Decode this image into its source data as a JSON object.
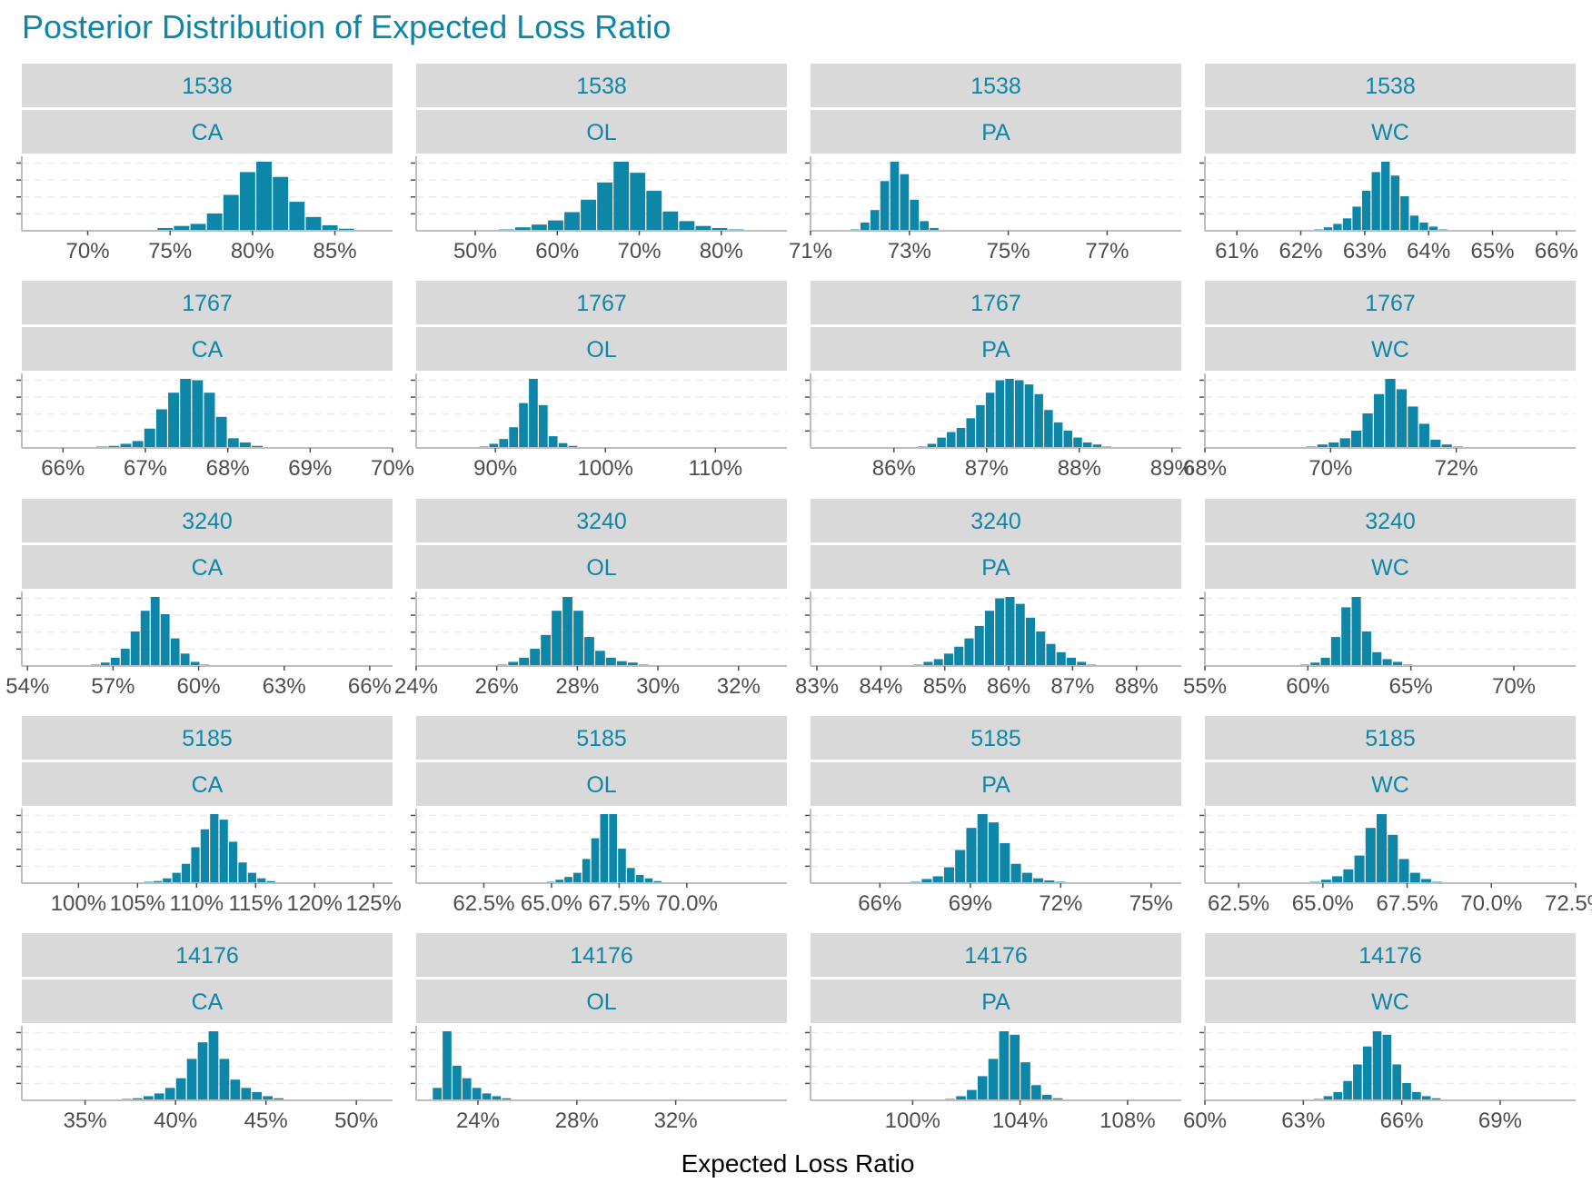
{
  "colors": {
    "bar": "#0E86A8",
    "accent_text": "#0E86A8",
    "strip_bg": "#D9D9D9",
    "grid": "#EBEBEB",
    "axis": "#BEBEBE",
    "tick_text": "#4D4D4D",
    "label_text": "#000000"
  },
  "chart_data": {
    "type": "bar",
    "title": "Posterior Distribution of Expected Loss Ratio",
    "xlabel": "Expected Loss Ratio",
    "layout": "facet grid, 5 rows (company) x 4 columns (line of business), free x scales",
    "rows": [
      "1538",
      "1767",
      "3240",
      "5185",
      "14176"
    ],
    "cols": [
      "CA",
      "OL",
      "PA",
      "WC"
    ],
    "panels": [
      {
        "company": "1538",
        "line": "CA",
        "xlim": [
          66,
          88.5
        ],
        "ticks": [
          70,
          75,
          80,
          85
        ],
        "tick_labels": [
          "70%",
          "75%",
          "80%",
          "85%"
        ],
        "bin_start": 73.2,
        "bin_width": 1.0,
        "counts": [
          1,
          4,
          7,
          10,
          25,
          52,
          85,
          100,
          78,
          42,
          20,
          8,
          3,
          1
        ]
      },
      {
        "company": "1538",
        "line": "OL",
        "xlim": [
          42.8,
          88
        ],
        "ticks": [
          50,
          60,
          70,
          80
        ],
        "tick_labels": [
          "50%",
          "60%",
          "70%",
          "80%"
        ],
        "bin_start": 52.8,
        "bin_width": 2.0,
        "counts": [
          2,
          5,
          9,
          15,
          27,
          45,
          70,
          100,
          84,
          58,
          28,
          14,
          7,
          4,
          2
        ]
      },
      {
        "company": "1538",
        "line": "PA",
        "xlim": [
          71,
          78.5
        ],
        "ticks": [
          71,
          73,
          75,
          77
        ],
        "tick_labels": [
          "71%",
          "73%",
          "75%",
          "77%"
        ],
        "bin_start": 71.8,
        "bin_width": 0.2,
        "counts": [
          2,
          12,
          30,
          72,
          100,
          82,
          45,
          14,
          4
        ]
      },
      {
        "company": "1538",
        "line": "WC",
        "xlim": [
          60.5,
          66.3
        ],
        "ticks": [
          61,
          62,
          63,
          64,
          65,
          66
        ],
        "tick_labels": [
          "61%",
          "62%",
          "63%",
          "64%",
          "65%",
          "66%"
        ],
        "bin_start": 62.2,
        "bin_width": 0.15,
        "counts": [
          2,
          5,
          10,
          18,
          35,
          58,
          85,
          100,
          80,
          50,
          22,
          12,
          6,
          2
        ]
      },
      {
        "company": "1767",
        "line": "CA",
        "xlim": [
          65.5,
          70
        ],
        "ticks": [
          66,
          67,
          68,
          69,
          70
        ],
        "tick_labels": [
          "66%",
          "67%",
          "68%",
          "69%",
          "70%"
        ],
        "bin_start": 66.4,
        "bin_width": 0.145,
        "counts": [
          2,
          3,
          6,
          10,
          28,
          56,
          80,
          100,
          98,
          80,
          45,
          14,
          8,
          3
        ]
      },
      {
        "company": "1767",
        "line": "OL",
        "xlim": [
          82.8,
          116.5
        ],
        "ticks": [
          90,
          100,
          110
        ],
        "tick_labels": [
          "90%",
          "100%",
          "110%"
        ],
        "bin_start": 88.5,
        "bin_width": 0.9,
        "counts": [
          2,
          6,
          13,
          30,
          65,
          100,
          62,
          17,
          7,
          3
        ]
      },
      {
        "company": "1767",
        "line": "PA",
        "xlim": [
          85.1,
          89.1
        ],
        "ticks": [
          86,
          87,
          88,
          89
        ],
        "tick_labels": [
          "86%",
          "87%",
          "88%",
          "89%"
        ],
        "bin_start": 86.25,
        "bin_width": 0.105,
        "counts": [
          2,
          6,
          15,
          23,
          29,
          43,
          62,
          80,
          98,
          100,
          98,
          92,
          78,
          55,
          37,
          25,
          15,
          8,
          5,
          2
        ]
      },
      {
        "company": "1767",
        "line": "WC",
        "xlim": [
          68,
          73.9
        ],
        "ticks": [
          68,
          70,
          72
        ],
        "tick_labels": [
          "68%",
          "70%",
          "72%"
        ],
        "bin_start": 69.6,
        "bin_width": 0.18,
        "counts": [
          2,
          5,
          8,
          14,
          25,
          50,
          78,
          100,
          85,
          60,
          35,
          12,
          5,
          2
        ]
      },
      {
        "company": "3240",
        "line": "CA",
        "xlim": [
          53.8,
          66.8
        ],
        "ticks": [
          54,
          57,
          60,
          63,
          66
        ],
        "tick_labels": [
          "54%",
          "57%",
          "60%",
          "63%",
          "66%"
        ],
        "bin_start": 56.2,
        "bin_width": 0.35,
        "counts": [
          2,
          5,
          12,
          25,
          50,
          80,
          100,
          75,
          40,
          18,
          6,
          2
        ]
      },
      {
        "company": "3240",
        "line": "OL",
        "xlim": [
          24,
          33.2
        ],
        "ticks": [
          24,
          26,
          28,
          30,
          32
        ],
        "tick_labels": [
          "24%",
          "26%",
          "28%",
          "30%",
          "32%"
        ],
        "bin_start": 26.0,
        "bin_width": 0.27,
        "counts": [
          2,
          6,
          12,
          25,
          45,
          80,
          100,
          80,
          42,
          22,
          12,
          7,
          5,
          2
        ]
      },
      {
        "company": "3240",
        "line": "PA",
        "xlim": [
          82.9,
          88.7
        ],
        "ticks": [
          83,
          84,
          85,
          86,
          87,
          88
        ],
        "tick_labels": [
          "83%",
          "84%",
          "85%",
          "86%",
          "87%",
          "88%"
        ],
        "bin_start": 84.5,
        "bin_width": 0.16,
        "counts": [
          2,
          6,
          10,
          18,
          28,
          40,
          58,
          80,
          98,
          100,
          90,
          70,
          50,
          32,
          20,
          12,
          6,
          2
        ]
      },
      {
        "company": "3240",
        "line": "WC",
        "xlim": [
          55,
          73
        ],
        "ticks": [
          55,
          60,
          65,
          70
        ],
        "tick_labels": [
          "55%",
          "60%",
          "65%",
          "70%"
        ],
        "bin_start": 59.6,
        "bin_width": 0.5,
        "counts": [
          2,
          5,
          12,
          42,
          85,
          100,
          50,
          20,
          10,
          6,
          2
        ]
      },
      {
        "company": "5185",
        "line": "CA",
        "xlim": [
          95.2,
          126.6
        ],
        "ticks": [
          100,
          105,
          110,
          115,
          120,
          125
        ],
        "tick_labels": [
          "100%",
          "105%",
          "110%",
          "115%",
          "120%",
          "125%"
        ],
        "bin_start": 105.5,
        "bin_width": 0.8,
        "counts": [
          2,
          3,
          7,
          15,
          28,
          52,
          78,
          100,
          92,
          60,
          30,
          15,
          7,
          3,
          1
        ]
      },
      {
        "company": "5185",
        "line": "OL",
        "xlim": [
          60,
          73.7
        ],
        "ticks": [
          62.5,
          65,
          67.5,
          70
        ],
        "tick_labels": [
          "62.5%",
          "65.0%",
          "67.5%",
          "70.0%"
        ],
        "bin_start": 64.8,
        "bin_width": 0.33,
        "counts": [
          2,
          5,
          9,
          15,
          35,
          65,
          100,
          100,
          50,
          22,
          12,
          7,
          3
        ]
      },
      {
        "company": "5185",
        "line": "PA",
        "xlim": [
          63.7,
          76
        ],
        "ticks": [
          66,
          69,
          72,
          75
        ],
        "tick_labels": [
          "66%",
          "69%",
          "72%",
          "75%"
        ],
        "bin_start": 67.0,
        "bin_width": 0.37,
        "counts": [
          2,
          6,
          10,
          23,
          48,
          80,
          100,
          88,
          58,
          28,
          15,
          7,
          4,
          2
        ]
      },
      {
        "company": "5185",
        "line": "WC",
        "xlim": [
          61.5,
          72.5
        ],
        "ticks": [
          62.5,
          65,
          67.5,
          70,
          72.5
        ],
        "tick_labels": [
          "62.5%",
          "65.0%",
          "67.5%",
          "70.0%",
          "72.5%"
        ],
        "bin_start": 64.6,
        "bin_width": 0.33,
        "counts": [
          2,
          5,
          10,
          20,
          40,
          80,
          100,
          70,
          35,
          15,
          6,
          2
        ]
      },
      {
        "company": "14176",
        "line": "CA",
        "xlim": [
          31.5,
          52
        ],
        "ticks": [
          35,
          40,
          45,
          50
        ],
        "tick_labels": [
          "35%",
          "40%",
          "45%",
          "50%"
        ],
        "bin_start": 37.0,
        "bin_width": 0.6,
        "counts": [
          2,
          3,
          6,
          10,
          18,
          32,
          60,
          84,
          100,
          60,
          30,
          18,
          12,
          6,
          3
        ]
      },
      {
        "company": "14176",
        "line": "OL",
        "xlim": [
          21.5,
          36.5
        ],
        "ticks": [
          24,
          28,
          32
        ],
        "tick_labels": [
          "24%",
          "28%",
          "32%"
        ],
        "bin_start": 22.15,
        "bin_width": 0.4,
        "counts": [
          18,
          100,
          50,
          32,
          18,
          10,
          6,
          3,
          1
        ]
      },
      {
        "company": "14176",
        "line": "PA",
        "xlim": [
          96.2,
          110
        ],
        "ticks": [
          100,
          104,
          108
        ],
        "tick_labels": [
          "100%",
          "104%",
          "108%"
        ],
        "bin_start": 101.2,
        "bin_width": 0.4,
        "counts": [
          2,
          6,
          15,
          35,
          60,
          100,
          95,
          55,
          22,
          8,
          3
        ]
      },
      {
        "company": "14176",
        "line": "WC",
        "xlim": [
          60,
          71.3
        ],
        "ticks": [
          60,
          63,
          66,
          69
        ],
        "tick_labels": [
          "60%",
          "63%",
          "66%",
          "69%"
        ],
        "bin_start": 63.3,
        "bin_width": 0.3,
        "counts": [
          2,
          6,
          12,
          28,
          52,
          78,
          100,
          95,
          52,
          25,
          12,
          6,
          3
        ]
      }
    ]
  }
}
